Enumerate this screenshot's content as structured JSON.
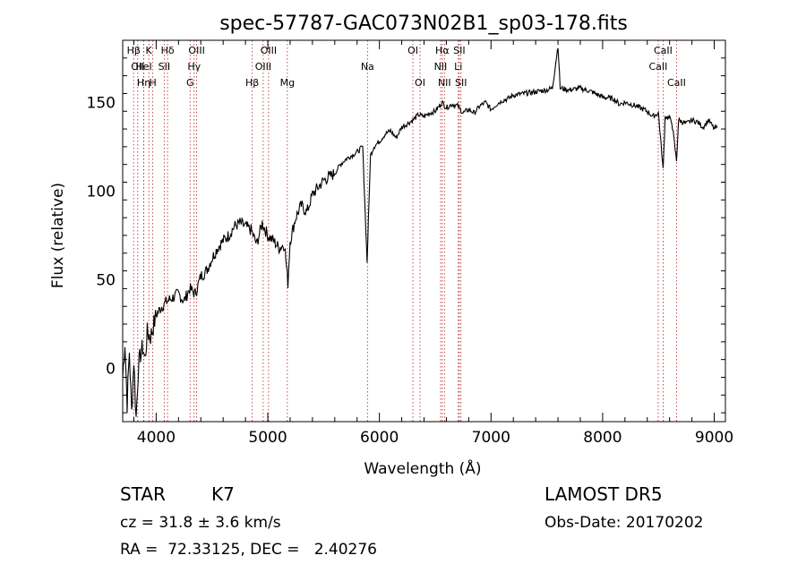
{
  "chart_data": {
    "type": "line",
    "title": "spec-57787-GAC073N02B1_sp03-178.fits",
    "xlabel": "Wavelength (Å)",
    "ylabel": "Flux (relative)",
    "xlim": [
      3700,
      9100
    ],
    "ylim": [
      -30,
      185
    ],
    "xticks": [
      4000,
      5000,
      6000,
      7000,
      8000,
      9000
    ],
    "yticks": [
      0,
      50,
      100,
      150
    ],
    "grid": false,
    "line_color": "#000000",
    "marker_color": "#b22222",
    "series": [
      {
        "points": [
          [
            3700,
            -5
          ],
          [
            3720,
            15
          ],
          [
            3740,
            -20
          ],
          [
            3760,
            10
          ],
          [
            3780,
            -25
          ],
          [
            3800,
            5
          ],
          [
            3820,
            -28
          ],
          [
            3840,
            0
          ],
          [
            3860,
            8
          ],
          [
            3880,
            12
          ],
          [
            3900,
            5
          ],
          [
            3920,
            20
          ],
          [
            3950,
            18
          ],
          [
            3980,
            25
          ],
          [
            4000,
            30
          ],
          [
            4050,
            35
          ],
          [
            4100,
            38
          ],
          [
            4150,
            40
          ],
          [
            4200,
            42
          ],
          [
            4250,
            38
          ],
          [
            4300,
            45
          ],
          [
            4350,
            42
          ],
          [
            4400,
            52
          ],
          [
            4450,
            55
          ],
          [
            4500,
            62
          ],
          [
            4550,
            68
          ],
          [
            4600,
            72
          ],
          [
            4650,
            75
          ],
          [
            4700,
            80
          ],
          [
            4750,
            82
          ],
          [
            4800,
            80
          ],
          [
            4850,
            78
          ],
          [
            4900,
            70
          ],
          [
            4950,
            82
          ],
          [
            5000,
            75
          ],
          [
            5050,
            72
          ],
          [
            5100,
            68
          ],
          [
            5150,
            70
          ],
          [
            5180,
            48
          ],
          [
            5200,
            72
          ],
          [
            5250,
            85
          ],
          [
            5300,
            92
          ],
          [
            5350,
            88
          ],
          [
            5400,
            98
          ],
          [
            5450,
            102
          ],
          [
            5500,
            106
          ],
          [
            5550,
            108
          ],
          [
            5600,
            110
          ],
          [
            5650,
            115
          ],
          [
            5700,
            118
          ],
          [
            5750,
            120
          ],
          [
            5800,
            122
          ],
          [
            5850,
            125
          ],
          [
            5890,
            60
          ],
          [
            5920,
            120
          ],
          [
            5950,
            125
          ],
          [
            6000,
            128
          ],
          [
            6050,
            132
          ],
          [
            6100,
            134
          ],
          [
            6150,
            130
          ],
          [
            6200,
            136
          ],
          [
            6250,
            138
          ],
          [
            6300,
            140
          ],
          [
            6350,
            143
          ],
          [
            6400,
            142
          ],
          [
            6450,
            144
          ],
          [
            6500,
            145
          ],
          [
            6563,
            150
          ],
          [
            6600,
            147
          ],
          [
            6650,
            149
          ],
          [
            6700,
            148
          ],
          [
            6750,
            144
          ],
          [
            6800,
            146
          ],
          [
            6850,
            144
          ],
          [
            6900,
            148
          ],
          [
            6950,
            150
          ],
          [
            7000,
            146
          ],
          [
            7050,
            149
          ],
          [
            7100,
            151
          ],
          [
            7150,
            152
          ],
          [
            7200,
            154
          ],
          [
            7300,
            155
          ],
          [
            7400,
            156
          ],
          [
            7500,
            157
          ],
          [
            7550,
            158
          ],
          [
            7600,
            182
          ],
          [
            7620,
            158
          ],
          [
            7700,
            157
          ],
          [
            7800,
            158
          ],
          [
            7900,
            156
          ],
          [
            8000,
            153
          ],
          [
            8100,
            152
          ],
          [
            8150,
            149
          ],
          [
            8200,
            150
          ],
          [
            8300,
            148
          ],
          [
            8400,
            145
          ],
          [
            8450,
            142
          ],
          [
            8500,
            144
          ],
          [
            8542,
            112
          ],
          [
            8560,
            142
          ],
          [
            8600,
            141
          ],
          [
            8620,
            139
          ],
          [
            8662,
            117
          ],
          [
            8680,
            140
          ],
          [
            8750,
            138
          ],
          [
            8800,
            140
          ],
          [
            8850,
            139
          ],
          [
            8900,
            136
          ],
          [
            8950,
            140
          ],
          [
            9000,
            135
          ],
          [
            9030,
            136
          ]
        ]
      }
    ],
    "lines": [
      {
        "wave": 3798,
        "label": "H&#946;",
        "row": 0
      },
      {
        "wave": 3835,
        "label": "OII",
        "row": 1
      },
      {
        "wave": 3889,
        "label": "H&#951;",
        "row": 2
      },
      {
        "wave": 3934,
        "label": "K",
        "row": 0
      },
      {
        "wave": 3970,
        "label": "H",
        "row": 2
      },
      {
        "wave": 3889,
        "label": "HeI",
        "row": 1
      },
      {
        "wave": 4102,
        "label": "H&#948;",
        "row": 0
      },
      {
        "wave": 4072,
        "label": "SII",
        "row": 1
      },
      {
        "wave": 4304,
        "label": "G",
        "row": 2
      },
      {
        "wave": 4340,
        "label": "H&#947;",
        "row": 1
      },
      {
        "wave": 4363,
        "label": "OIII",
        "row": 0
      },
      {
        "wave": 4861,
        "label": "H&#946;",
        "row": 2
      },
      {
        "wave": 4959,
        "label": "OIII",
        "row": 1
      },
      {
        "wave": 5007,
        "label": "OIII",
        "row": 0
      },
      {
        "wave": 5175,
        "label": "Mg",
        "row": 2
      },
      {
        "wave": 5893,
        "label": "Na",
        "row": 1
      },
      {
        "wave": 6300,
        "label": "OI",
        "row": 0
      },
      {
        "wave": 6364,
        "label": "OI",
        "row": 2
      },
      {
        "wave": 6548,
        "label": "NII",
        "row": 1
      },
      {
        "wave": 6563,
        "label": "H&#945;",
        "row": 0
      },
      {
        "wave": 6583,
        "label": "NII",
        "row": 2
      },
      {
        "wave": 6707,
        "label": "Li",
        "row": 1
      },
      {
        "wave": 6716,
        "label": "SII",
        "row": 0
      },
      {
        "wave": 6731,
        "label": "SII",
        "row": 2
      },
      {
        "wave": 8498,
        "label": "CaII",
        "row": 1
      },
      {
        "wave": 8542,
        "label": "CaII",
        "row": 0
      },
      {
        "wave": 8662,
        "label": "CaII",
        "row": 2
      }
    ]
  },
  "info": {
    "class_label": "STAR",
    "subclass": "K7",
    "survey": "LAMOST DR5",
    "cz": "cz = 31.8 ± 3.6 km/s",
    "obs_date": "Obs-Date: 20170202",
    "coords": "RA =  72.33125, DEC =   2.40276"
  }
}
